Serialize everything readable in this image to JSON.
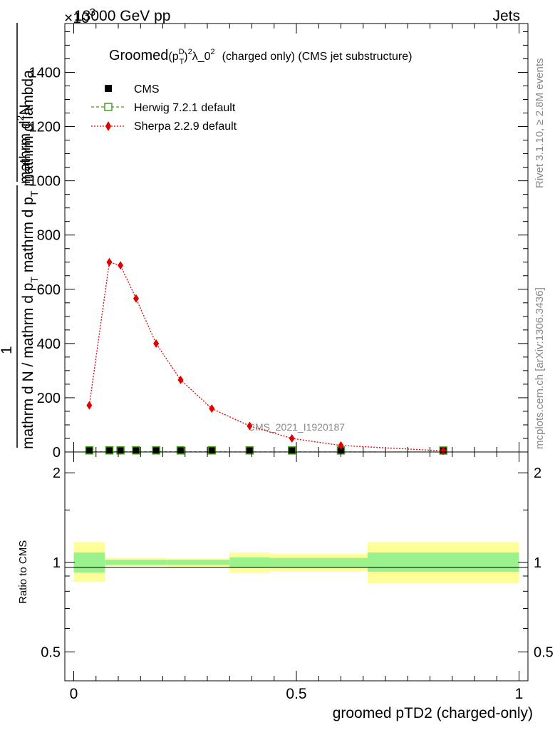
{
  "header": {
    "left": "13000 GeV pp",
    "right": "Jets",
    "exponent": "×10",
    "exponent_power": "3"
  },
  "side": {
    "rivet": "Rivet 3.1.10, ≥ 2.8M events",
    "mcplots": "mcplots.cern.ch [arXiv:1306.3436]"
  },
  "plot": {
    "title_main": "Groomed",
    "title_p": "(p",
    "title_sup_d": "D",
    "title_sub_t": "T",
    "title_close": ")",
    "title_sup2": "2",
    "title_lambda": "λ_0",
    "title_lambda_sup": "2",
    "title_tail": "(charged only) (CMS jet substructure)",
    "watermark": "CMS_2021_I1920187",
    "ylabel_top": "mathrm d",
    "ylabel_top_sup": "2",
    "ylabel_top_n": "N",
    "ylabel_one": "1",
    "ylabel_bottom": "mathrm d N / mathrm d p",
    "ylabel_bottom_sub": "T",
    "ylabel_bottom2": " mathrm d p",
    "ylabel_bottom2_sub": "T",
    "ylabel_bottom3": " mathrm d lambda",
    "ratio_ylabel": "Ratio to CMS",
    "xlabel": "groomed pTD2 (charged-only)"
  },
  "legend": [
    {
      "label": "CMS",
      "marker": "square-filled",
      "color": "#000000"
    },
    {
      "label": "Herwig 7.2.1 default",
      "marker": "square-open",
      "color": "#4a9a1e"
    },
    {
      "label": "Sherpa 2.2.9 default",
      "marker": "diamond",
      "color": "#e00000"
    }
  ],
  "chart_data": {
    "type": "line",
    "x_ticks": [
      "0",
      "0.5",
      "1"
    ],
    "main_y_ticks": [
      "0",
      "200",
      "400",
      "600",
      "800",
      "1000",
      "1200",
      "1400"
    ],
    "ratio_y_ticks": [
      "0.5",
      "1",
      "2"
    ],
    "xlim": [
      -0.02,
      1.02
    ],
    "main_ylim": [
      0,
      1580
    ],
    "ratio_ylim": [
      0.4,
      2.35
    ],
    "ratio_scale": "log",
    "series": [
      {
        "name": "CMS",
        "x": [
          0.035,
          0.08,
          0.105,
          0.14,
          0.185,
          0.24,
          0.31,
          0.395,
          0.49,
          0.6,
          0.83
        ],
        "y": [
          0.6,
          0.6,
          0.6,
          0.6,
          0.6,
          0.6,
          0.6,
          0.5,
          0.4,
          0.3,
          0.1
        ]
      },
      {
        "name": "Herwig 7.2.1 default",
        "x": [
          0.035,
          0.08,
          0.105,
          0.14,
          0.185,
          0.24,
          0.31,
          0.395,
          0.49,
          0.6,
          0.83
        ],
        "y": [
          0.6,
          0.6,
          0.6,
          0.6,
          0.6,
          0.6,
          0.6,
          0.5,
          0.4,
          0.3,
          0.1
        ]
      },
      {
        "name": "Sherpa 2.2.9 default",
        "x": [
          0.035,
          0.08,
          0.105,
          0.14,
          0.185,
          0.24,
          0.31,
          0.395,
          0.49,
          0.6,
          0.83
        ],
        "y": [
          172,
          700,
          688,
          566,
          400,
          266,
          160,
          96,
          50,
          24,
          4
        ]
      }
    ],
    "ratio_bands": [
      {
        "x0": 0.0,
        "x1": 0.07,
        "inner": [
          0.925,
          1.08
        ],
        "outer": [
          0.86,
          1.17
        ]
      },
      {
        "x0": 0.07,
        "x1": 0.21,
        "inner": [
          0.98,
          1.02
        ],
        "outer": [
          0.97,
          1.035
        ]
      },
      {
        "x0": 0.21,
        "x1": 0.35,
        "inner": [
          0.98,
          1.02
        ],
        "outer": [
          0.965,
          1.03
        ]
      },
      {
        "x0": 0.35,
        "x1": 0.44,
        "inner": [
          0.96,
          1.04
        ],
        "outer": [
          0.925,
          1.08
        ]
      },
      {
        "x0": 0.44,
        "x1": 0.66,
        "inner": [
          0.965,
          1.035
        ],
        "outer": [
          0.935,
          1.07
        ]
      },
      {
        "x0": 0.66,
        "x1": 1.0,
        "inner": [
          0.93,
          1.08
        ],
        "outer": [
          0.85,
          1.17
        ]
      }
    ],
    "colors": {
      "band_inner": "#99f28c",
      "band_outer": "#ffff99"
    },
    "grid": false
  }
}
